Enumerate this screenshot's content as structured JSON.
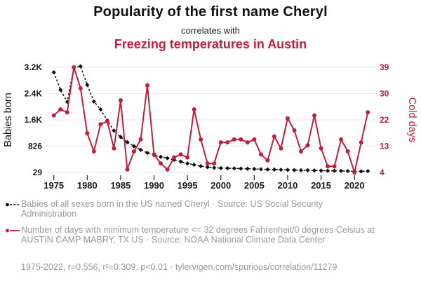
{
  "header": {
    "title": "Popularity of the first name Cheryl",
    "connector": "correlates with",
    "subtitle": "Freezing temperatures in Austin"
  },
  "colors": {
    "accent_red": "#bf1f3b",
    "series_black": "#111111",
    "legend_gray": "#999999",
    "gridline": "#e9e9e9"
  },
  "chart_data": {
    "type": "line",
    "title": "Popularity of the first name Cheryl correlates with Freezing temperatures in Austin",
    "x": [
      1975,
      1976,
      1977,
      1978,
      1979,
      1980,
      1981,
      1982,
      1983,
      1984,
      1985,
      1986,
      1987,
      1988,
      1989,
      1990,
      1991,
      1992,
      1993,
      1994,
      1995,
      1996,
      1997,
      1998,
      1999,
      2000,
      2001,
      2002,
      2003,
      2004,
      2005,
      2006,
      2007,
      2008,
      2009,
      2010,
      2011,
      2012,
      2013,
      2014,
      2015,
      2016,
      2017,
      2018,
      2019,
      2020,
      2021,
      2022
    ],
    "series": [
      {
        "name": "Babies born",
        "legend": "Babies of all sexes born in the US named Cheryl · Source: US Social Security Administration",
        "axis": "left",
        "color": "#111111",
        "style": "dashed",
        "marker": "diamond",
        "values": [
          3050,
          2520,
          2160,
          3190,
          3230,
          2670,
          2170,
          1930,
          1600,
          1290,
          1100,
          940,
          820,
          710,
          620,
          550,
          500,
          460,
          410,
          355,
          300,
          260,
          220,
          190,
          170,
          160,
          155,
          150,
          145,
          140,
          135,
          125,
          120,
          115,
          110,
          105,
          100,
          95,
          95,
          90,
          85,
          80,
          80,
          75,
          70,
          60,
          60,
          70
        ]
      },
      {
        "name": "Cold days",
        "legend": "Number of days with minimum temperature <= 32 degrees Fahrenheit/0 degrees Celsius at AUSTIN CAMP MABRY, TX US · Source: NOAA National Climate Data Center",
        "axis": "right",
        "color": "#bf1f3b",
        "style": "solid",
        "marker": "circle",
        "values": [
          23,
          25,
          24,
          39,
          32,
          17,
          11,
          20,
          21,
          12,
          28,
          5,
          11,
          15,
          33,
          10,
          7,
          5,
          9,
          10,
          9,
          25,
          15,
          7,
          7,
          14,
          14,
          15,
          15,
          14,
          15,
          10,
          8,
          16,
          12,
          22,
          18,
          11,
          13,
          23,
          12,
          6,
          6,
          15,
          11,
          4,
          14,
          24
        ]
      }
    ],
    "left_axis": {
      "label": "Babies born",
      "ticks": [
        "3.2K",
        "2.4K",
        "1.6K",
        "826",
        "29"
      ],
      "tick_values": [
        3200,
        2400,
        1600,
        826,
        29
      ],
      "range": [
        29,
        3200
      ]
    },
    "right_axis": {
      "label": "Cold days",
      "ticks": [
        "39",
        "30",
        "22",
        "13",
        "4"
      ],
      "tick_values": [
        39,
        30,
        22,
        13,
        4
      ],
      "range": [
        4,
        39
      ]
    },
    "x_axis": {
      "ticks": [
        "1975",
        "1980",
        "1985",
        "1990",
        "1995",
        "2000",
        "2005",
        "2010",
        "2015",
        "2020"
      ],
      "tick_values": [
        1975,
        1980,
        1985,
        1990,
        1995,
        2000,
        2005,
        2010,
        2015,
        2020
      ]
    },
    "grid": true,
    "legend_position": "bottom"
  },
  "footer": {
    "text": "1975-2022, r=0.556, r²=0.309, p<0.01 · tylervigen.com/spurious/correlation/11279"
  }
}
